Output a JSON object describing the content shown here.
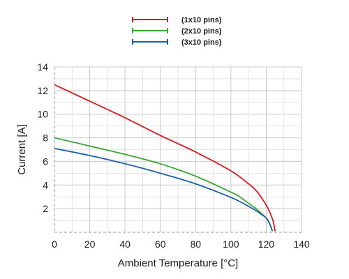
{
  "chart_data": {
    "type": "line",
    "title": "",
    "xlabel": "Ambient Temperature [°C]",
    "ylabel": "Current [A]",
    "xlim": [
      0,
      140
    ],
    "ylim": [
      0,
      14
    ],
    "xticks": [
      0,
      20,
      40,
      60,
      80,
      100,
      120,
      140
    ],
    "yticks": [
      2,
      4,
      6,
      8,
      10,
      12,
      14
    ],
    "x_tick_labels": [
      "0",
      "20",
      "40",
      "60",
      "80",
      "100",
      "120",
      "140"
    ],
    "y_tick_labels": [
      "2",
      "4",
      "6",
      "8",
      "10",
      "12",
      "14"
    ],
    "grid": true,
    "legend_position": "top-center",
    "series": [
      {
        "name": "(1x10 pins)",
        "color": "#d7191c",
        "points": [
          [
            0,
            12.5
          ],
          [
            20,
            11.1
          ],
          [
            40,
            9.7
          ],
          [
            60,
            8.2
          ],
          [
            80,
            6.8
          ],
          [
            100,
            5.2
          ],
          [
            110,
            4.1
          ],
          [
            115,
            3.4
          ],
          [
            120,
            2.3
          ],
          [
            122,
            1.7
          ],
          [
            124,
            0.9
          ],
          [
            125,
            0.1
          ]
        ]
      },
      {
        "name": "(2x10 pins)",
        "color": "#3aa535",
        "points": [
          [
            0,
            8.0
          ],
          [
            20,
            7.3
          ],
          [
            40,
            6.6
          ],
          [
            60,
            5.8
          ],
          [
            80,
            4.75
          ],
          [
            100,
            3.4
          ],
          [
            105,
            3.0
          ],
          [
            110,
            2.45
          ],
          [
            115,
            1.9
          ],
          [
            120,
            1.2
          ],
          [
            122,
            0.7
          ],
          [
            123.5,
            0.1
          ]
        ]
      },
      {
        "name": "(3x10 pins)",
        "color": "#1f5fa8",
        "points": [
          [
            0,
            7.1
          ],
          [
            20,
            6.5
          ],
          [
            40,
            5.8
          ],
          [
            60,
            5.0
          ],
          [
            80,
            4.1
          ],
          [
            100,
            2.95
          ],
          [
            110,
            2.2
          ],
          [
            115,
            1.75
          ],
          [
            120,
            1.2
          ],
          [
            122,
            0.7
          ],
          [
            123.5,
            0.1
          ]
        ]
      }
    ]
  }
}
